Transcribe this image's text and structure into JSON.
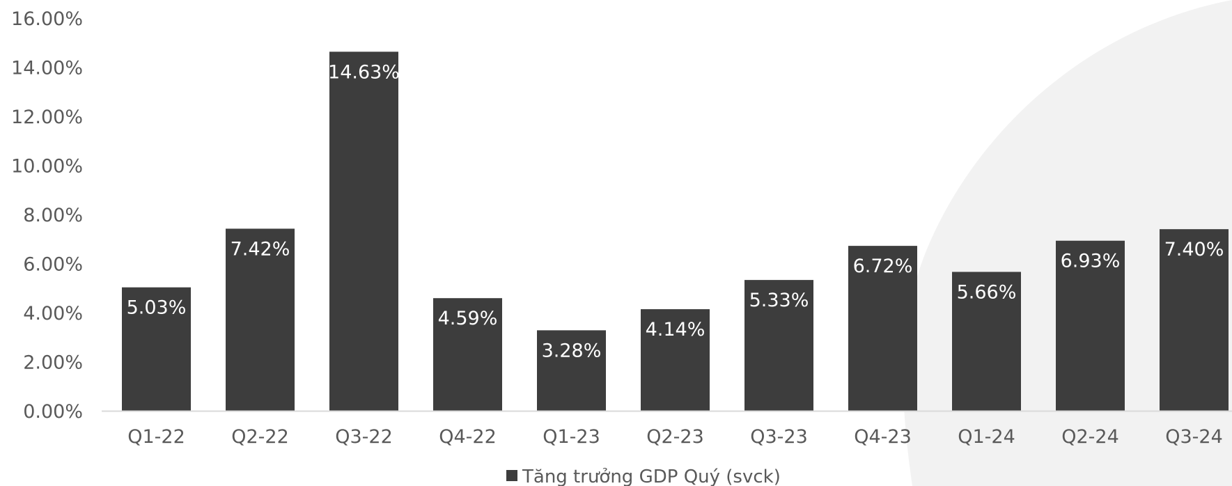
{
  "chart_data": {
    "type": "bar",
    "categories": [
      "Q1-22",
      "Q2-22",
      "Q3-22",
      "Q4-22",
      "Q1-23",
      "Q2-23",
      "Q3-23",
      "Q4-23",
      "Q1-24",
      "Q2-24",
      "Q3-24"
    ],
    "series": [
      {
        "name": "Tăng trưởng GDP Quý (svck)",
        "values": [
          5.03,
          7.42,
          14.63,
          4.59,
          3.28,
          4.14,
          5.33,
          6.72,
          5.66,
          6.93,
          7.4
        ],
        "data_labels": [
          "5.03%",
          "7.42%",
          "14.63%",
          "4.59%",
          "3.28%",
          "4.14%",
          "5.33%",
          "6.72%",
          "5.66%",
          "6.93%",
          "7.40%"
        ]
      }
    ],
    "y_tick_labels": [
      "0.00%",
      "2.00%",
      "4.00%",
      "6.00%",
      "8.00%",
      "10.00%",
      "12.00%",
      "14.00%",
      "16.00%"
    ],
    "ylim": [
      0,
      16
    ],
    "grid": false,
    "legend_position": "bottom",
    "bar_color": "#3d3d3d",
    "axis_color": "#d9d9d9",
    "text_color": "#595959",
    "background_shape_color": "#f2f2f2"
  }
}
